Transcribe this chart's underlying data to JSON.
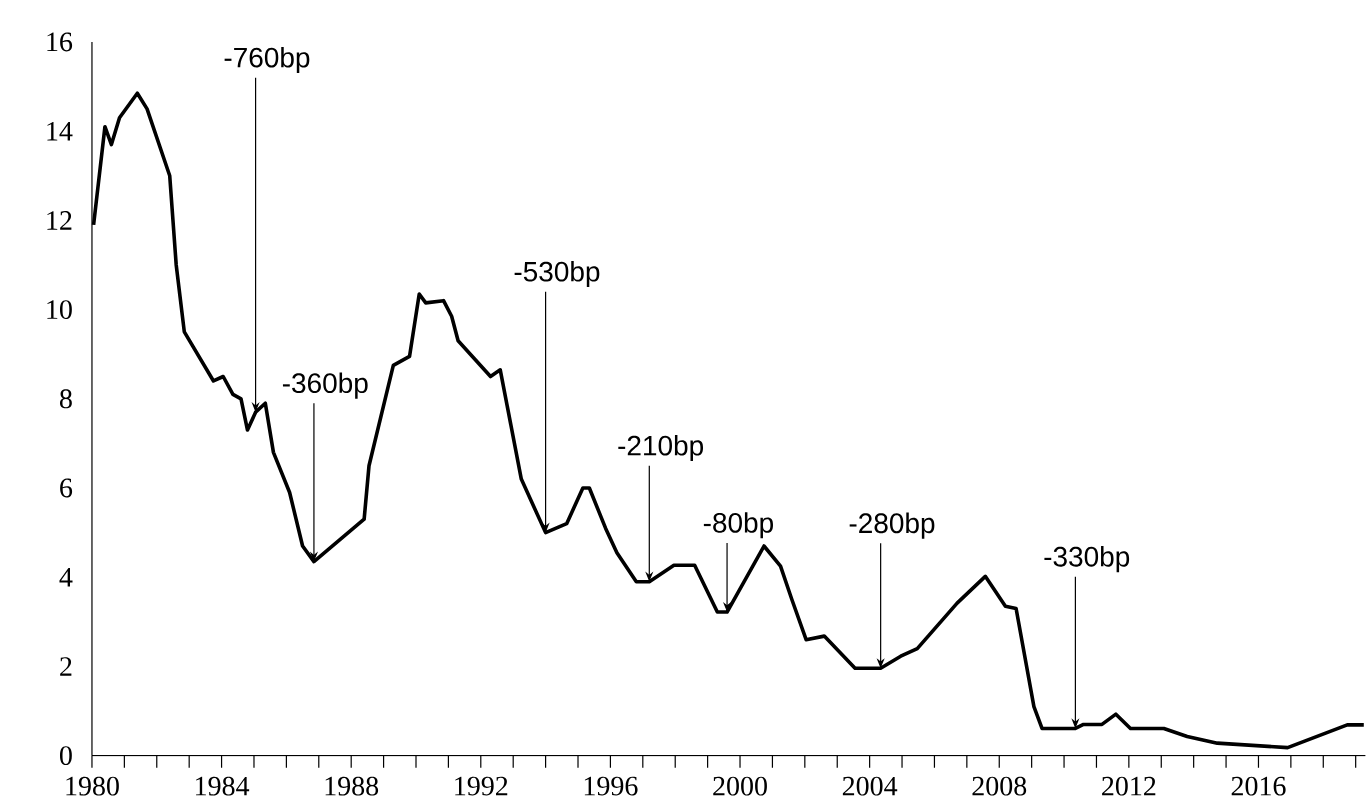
{
  "chart_data": {
    "type": "line",
    "color": "#000000",
    "grid": false,
    "marker": "none",
    "line_style": "solid",
    "x": [
      1980.05,
      1980.4,
      1980.6,
      1980.85,
      1981.4,
      1981.7,
      1982.4,
      1982.6,
      1982.85,
      1983.75,
      1984.05,
      1984.35,
      1984.6,
      1984.8,
      1985.05,
      1985.35,
      1985.6,
      1986.1,
      1986.5,
      1986.85,
      1988.4,
      1988.55,
      1989.3,
      1989.8,
      1990.1,
      1990.3,
      1990.85,
      1991.1,
      1991.3,
      1992.3,
      1992.6,
      1993.25,
      1994.0,
      1994.65,
      1995.15,
      1995.35,
      1995.85,
      1996.2,
      1996.8,
      1997.2,
      1997.96,
      1998.6,
      1999.3,
      1999.6,
      2000.74,
      2001.25,
      2001.6,
      2002.04,
      2002.6,
      2003.55,
      2004.34,
      2004.96,
      2005.47,
      2006.7,
      2007.57,
      2008.19,
      2008.52,
      2009.07,
      2009.32,
      2010.35,
      2010.6,
      2011.17,
      2011.6,
      2012.05,
      2013.08,
      2013.8,
      2014.73,
      2016.9,
      2018.74,
      2019.25
    ],
    "values": [
      11.9,
      14.1,
      13.7,
      14.3,
      14.85,
      14.5,
      13.0,
      11.0,
      9.5,
      8.4,
      8.5,
      8.1,
      8.0,
      7.3,
      7.7,
      7.9,
      6.8,
      5.9,
      4.7,
      4.35,
      5.3,
      6.5,
      8.75,
      8.95,
      10.35,
      10.15,
      10.2,
      9.85,
      9.3,
      8.5,
      8.65,
      6.2,
      5.0,
      5.2,
      6.0,
      6.0,
      5.1,
      4.55,
      3.9,
      3.9,
      4.27,
      4.27,
      3.22,
      3.22,
      4.7,
      4.25,
      3.5,
      2.6,
      2.68,
      1.96,
      1.96,
      2.23,
      2.4,
      3.42,
      4.02,
      3.35,
      3.3,
      1.1,
      0.61,
      0.61,
      0.7,
      0.7,
      0.93,
      0.61,
      0.61,
      0.43,
      0.28,
      0.18,
      0.69,
      0.69
    ],
    "xlim": [
      1980,
      2019.3
    ],
    "ylim": [
      0,
      16
    ],
    "xticks": [
      1980,
      {
        "value": 1981,
        "label": null
      },
      {
        "value": 1982,
        "label": null
      },
      {
        "value": 1983,
        "label": null
      },
      1984,
      {
        "value": 1985,
        "label": null
      },
      {
        "value": 1986,
        "label": null
      },
      {
        "value": 1987,
        "label": null
      },
      1988,
      {
        "value": 1989,
        "label": null
      },
      {
        "value": 1990,
        "label": null
      },
      {
        "value": 1991,
        "label": null
      },
      1992,
      {
        "value": 1993,
        "label": null
      },
      {
        "value": 1994,
        "label": null
      },
      {
        "value": 1995,
        "label": null
      },
      1996,
      {
        "value": 1997,
        "label": null
      },
      {
        "value": 1998,
        "label": null
      },
      {
        "value": 1999,
        "label": null
      },
      2000,
      {
        "value": 2001,
        "label": null
      },
      {
        "value": 2002,
        "label": null
      },
      {
        "value": 2003,
        "label": null
      },
      2004,
      {
        "value": 2005,
        "label": null
      },
      {
        "value": 2006,
        "label": null
      },
      {
        "value": 2007,
        "label": null
      },
      2008,
      {
        "value": 2009,
        "label": null
      },
      {
        "value": 2010,
        "label": null
      },
      {
        "value": 2011,
        "label": null
      },
      2012,
      {
        "value": 2013,
        "label": null
      },
      {
        "value": 2014,
        "label": null
      },
      {
        "value": 2015,
        "label": null
      },
      2016,
      {
        "value": 2017,
        "label": null
      },
      {
        "value": 2018,
        "label": null
      },
      {
        "value": 2019,
        "label": null
      }
    ],
    "yticks": [
      0,
      2,
      4,
      6,
      8,
      10,
      12,
      14,
      16
    ],
    "annotations": [
      {
        "text": "-760bp",
        "x": 1985.05,
        "y": 7.7
      },
      {
        "text": "-360bp",
        "x": 1986.85,
        "y": 4.35
      },
      {
        "text": "-530bp",
        "x": 1994.0,
        "y": 5.0
      },
      {
        "text": "-210bp",
        "x": 1997.2,
        "y": 3.9
      },
      {
        "text": "-80bp",
        "x": 1999.6,
        "y": 3.22
      },
      {
        "text": "-280bp",
        "x": 2004.34,
        "y": 1.96
      },
      {
        "text": "-330bp",
        "x": 2010.35,
        "y": 0.61
      }
    ]
  }
}
